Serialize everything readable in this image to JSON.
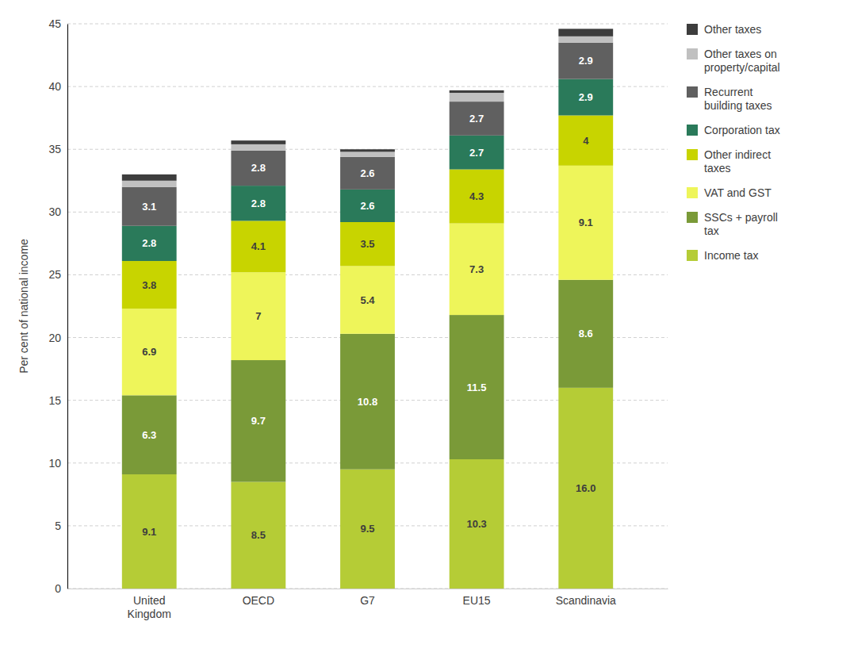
{
  "chart_data": {
    "type": "bar",
    "stacked": true,
    "categories": [
      "United\nKingdom",
      "OECD",
      "G7",
      "EU15",
      "Scandinavia"
    ],
    "series": [
      {
        "name": "Income tax",
        "color": "#b5cc36",
        "values": [
          9.1,
          8.5,
          9.5,
          10.3,
          16.0
        ],
        "data_labels": true,
        "value_labels": [
          "9.1",
          "8.5",
          "9.5",
          "10.3",
          "16.0"
        ]
      },
      {
        "name": "SSCs + payroll\ntax",
        "color": "#7a9a38",
        "values": [
          6.3,
          9.7,
          10.8,
          11.5,
          8.6
        ],
        "data_labels": true
      },
      {
        "name": "VAT and GST",
        "color": "#eef55a",
        "values": [
          6.9,
          7.0,
          5.4,
          7.3,
          9.1
        ],
        "data_labels": true
      },
      {
        "name": "Other indirect\ntaxes",
        "color": "#c8d400",
        "values": [
          3.8,
          4.1,
          3.5,
          4.3,
          4.0
        ],
        "data_labels": true
      },
      {
        "name": "Corporation tax",
        "color": "#2a7a5a",
        "values": [
          2.8,
          2.8,
          2.6,
          2.7,
          2.9
        ],
        "data_labels": true
      },
      {
        "name": "Recurrent\nbuilding taxes",
        "color": "#606060",
        "values": [
          3.1,
          2.8,
          2.6,
          2.7,
          2.9
        ],
        "data_labels": true
      },
      {
        "name": "Other taxes on\nproperty/capital",
        "color": "#c0c0c0",
        "values": [
          0.5,
          0.5,
          0.4,
          0.7,
          0.5
        ],
        "data_labels": false
      },
      {
        "name": "Other taxes",
        "color": "#3d3d3d",
        "values": [
          0.5,
          0.3,
          0.2,
          0.2,
          0.6
        ],
        "data_labels": false
      }
    ],
    "y_label": "Per cent of national income",
    "ylim": [
      0,
      45
    ],
    "yticks": [
      0,
      5,
      10,
      15,
      20,
      25,
      30,
      35,
      40,
      45
    ],
    "grid": true,
    "legend": "right"
  }
}
